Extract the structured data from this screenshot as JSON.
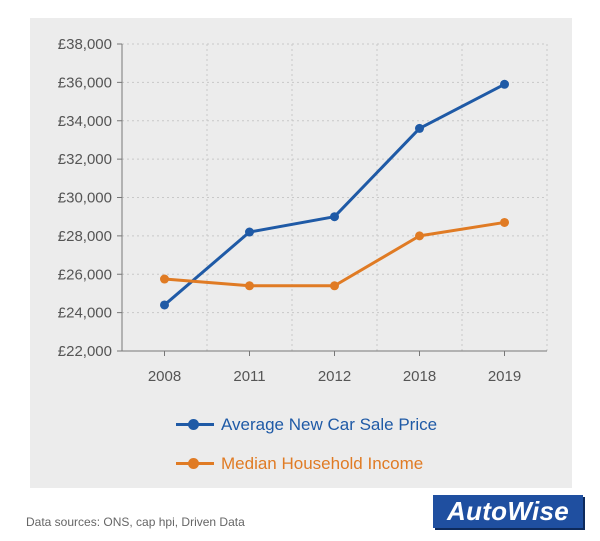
{
  "colors": {
    "series1": "#1f5aa6",
    "series2": "#e07b24",
    "grid": "#c8c8c8",
    "axis": "#777777",
    "tick_text": "#555555",
    "panel": "#ececec"
  },
  "chart_data": {
    "type": "line",
    "categories": [
      "2008",
      "2011",
      "2012",
      "2018",
      "2019"
    ],
    "ylim": [
      22000,
      38000
    ],
    "yticks": [
      22000,
      24000,
      26000,
      28000,
      30000,
      32000,
      34000,
      36000,
      38000
    ],
    "ytick_labels": [
      "£22,000",
      "£24,000",
      "£26,000",
      "£28,000",
      "£30,000",
      "£32,000",
      "£34,000",
      "£36,000",
      "£38,000"
    ],
    "grid": true,
    "legend_position": "bottom-left",
    "series": [
      {
        "name": "Average New Car Sale Price",
        "values": [
          24400,
          28200,
          29000,
          33600,
          35900
        ]
      },
      {
        "name": "Median Household Income",
        "values": [
          25750,
          25400,
          25400,
          28000,
          28700
        ]
      }
    ]
  },
  "footer": {
    "source": "Data sources: ONS, cap hpi, Driven Data",
    "logo_text": "AutoWise"
  }
}
